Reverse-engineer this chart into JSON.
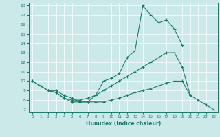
{
  "xlabel": "Humidex (Indice chaleur)",
  "xlim": [
    -0.5,
    23.5
  ],
  "ylim": [
    6.7,
    18.3
  ],
  "xticks": [
    0,
    1,
    2,
    3,
    4,
    5,
    6,
    7,
    8,
    9,
    10,
    11,
    12,
    13,
    14,
    15,
    16,
    17,
    18,
    19,
    20,
    21,
    22,
    23
  ],
  "yticks": [
    7,
    8,
    9,
    10,
    11,
    12,
    13,
    14,
    15,
    16,
    17,
    18
  ],
  "bg_color": "#cce9e9",
  "line_color": "#1a7a6a",
  "grid_color": "#ffffff",
  "line1_x": [
    0,
    1,
    2,
    3,
    4,
    5,
    6,
    7,
    8,
    9,
    10,
    11,
    12,
    13,
    14,
    15,
    16,
    17,
    18,
    19
  ],
  "line1_y": [
    10.0,
    9.5,
    9.0,
    9.0,
    8.5,
    8.2,
    7.8,
    7.8,
    8.5,
    10.0,
    10.3,
    10.8,
    12.5,
    13.2,
    18.0,
    17.0,
    16.2,
    16.5,
    15.5,
    13.8
  ],
  "line2_x": [
    0,
    1,
    2,
    3,
    4,
    5,
    6,
    7,
    8,
    9,
    10,
    11,
    12,
    13,
    14,
    15,
    16,
    17,
    18,
    19,
    20
  ],
  "line2_y": [
    10.0,
    9.5,
    9.0,
    8.8,
    8.2,
    8.0,
    8.0,
    8.2,
    8.5,
    9.0,
    9.5,
    10.0,
    10.5,
    11.0,
    11.5,
    12.0,
    12.5,
    13.0,
    13.0,
    11.5,
    8.5
  ],
  "line3_x": [
    2,
    3,
    4,
    5,
    6,
    7,
    8,
    9,
    10,
    11,
    12,
    13,
    14,
    15,
    16,
    17,
    18,
    19,
    20,
    21,
    22,
    23
  ],
  "line3_y": [
    9.0,
    8.8,
    8.2,
    7.8,
    7.8,
    7.8,
    7.8,
    7.8,
    8.0,
    8.2,
    8.5,
    8.8,
    9.0,
    9.2,
    9.5,
    9.8,
    10.0,
    10.0,
    8.5,
    8.0,
    7.5,
    7.0
  ]
}
